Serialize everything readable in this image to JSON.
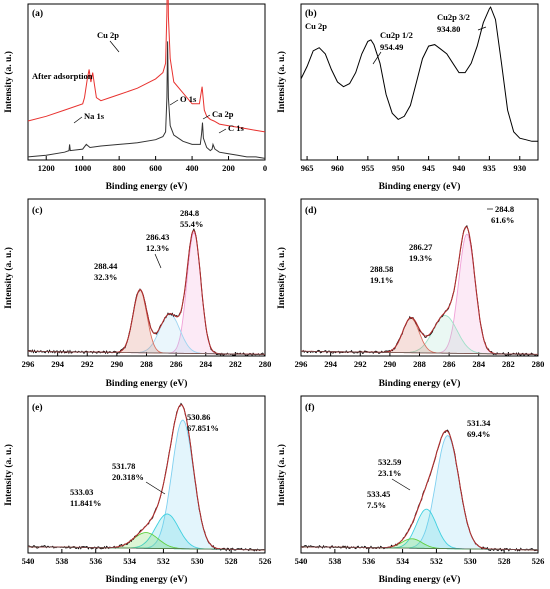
{
  "figure": {
    "xlabel": "Binding energy (eV)",
    "ylabel": "Intensity (a. u.)"
  },
  "chart_data": [
    {
      "panel": "(a)",
      "type": "line",
      "xlim": [
        1300,
        0
      ],
      "xticks": [
        1200,
        1000,
        800,
        600,
        400,
        200,
        0
      ],
      "xlabel": "Binding energy (eV)",
      "ylabel": "Intensity (a. u.)",
      "series": [
        {
          "name": "After adsorption",
          "color": "#e8322f",
          "x": [
            1300,
            1200,
            1100,
            1000,
            990,
            975,
            965,
            955,
            945,
            935,
            925,
            900,
            850,
            800,
            750,
            700,
            650,
            600,
            560,
            545,
            538,
            534,
            530,
            520,
            500,
            450,
            400,
            360,
            345,
            338,
            333,
            320,
            300,
            280,
            250,
            200,
            150,
            100,
            50,
            0
          ],
          "y": [
            0.25,
            0.28,
            0.32,
            0.36,
            0.4,
            0.52,
            0.58,
            0.5,
            0.56,
            0.48,
            0.4,
            0.38,
            0.4,
            0.42,
            0.44,
            0.46,
            0.49,
            0.52,
            0.56,
            0.62,
            0.95,
            1.4,
            0.92,
            0.65,
            0.5,
            0.43,
            0.36,
            0.36,
            0.47,
            0.38,
            0.32,
            0.28,
            0.26,
            0.25,
            0.23,
            0.22,
            0.21,
            0.2,
            0.19,
            0.18
          ]
        },
        {
          "name": "",
          "color": "#333333",
          "x": [
            1300,
            1200,
            1100,
            1075,
            1072,
            1068,
            1000,
            980,
            970,
            960,
            900,
            800,
            700,
            600,
            560,
            545,
            538,
            534,
            530,
            520,
            500,
            450,
            400,
            355,
            348,
            343,
            338,
            320,
            300,
            290,
            285,
            275,
            250,
            200,
            150,
            100,
            50,
            0
          ],
          "y": [
            0.02,
            0.03,
            0.05,
            0.06,
            0.1,
            0.06,
            0.07,
            0.1,
            0.09,
            0.08,
            0.09,
            0.1,
            0.11,
            0.13,
            0.15,
            0.18,
            0.4,
            0.76,
            0.4,
            0.22,
            0.16,
            0.12,
            0.1,
            0.1,
            0.17,
            0.24,
            0.14,
            0.08,
            0.06,
            0.07,
            0.1,
            0.07,
            0.05,
            0.04,
            0.03,
            0.02,
            0.02,
            0.01
          ]
        }
      ],
      "annotations": [
        "Cu 2p",
        "Na 1s",
        "O 1s",
        "Ca 2p",
        "C 1s"
      ]
    },
    {
      "panel": "(b)",
      "title": "Cu 2p",
      "type": "line",
      "xlim": [
        966,
        927
      ],
      "xticks": [
        965,
        960,
        955,
        950,
        945,
        940,
        935,
        930
      ],
      "xlabel": "Binding energy (eV)",
      "ylabel": "Intensity (a. u.)",
      "series": [
        {
          "name": "",
          "color": "#000000",
          "x": [
            966,
            965,
            964,
            963,
            962,
            961,
            960,
            959,
            958,
            957,
            956,
            955,
            954.5,
            954,
            953,
            952,
            951,
            950,
            949,
            948,
            947,
            946,
            945,
            944,
            943,
            942,
            941,
            940,
            939,
            938,
            937,
            936,
            935,
            934.8,
            934,
            933,
            932,
            931,
            930,
            929,
            928,
            927
          ],
          "y": [
            0.52,
            0.6,
            0.7,
            0.72,
            0.68,
            0.58,
            0.5,
            0.47,
            0.49,
            0.56,
            0.68,
            0.76,
            0.77,
            0.74,
            0.62,
            0.42,
            0.3,
            0.26,
            0.28,
            0.35,
            0.5,
            0.65,
            0.73,
            0.74,
            0.71,
            0.68,
            0.62,
            0.56,
            0.56,
            0.62,
            0.73,
            0.88,
            0.97,
            0.98,
            0.9,
            0.62,
            0.32,
            0.18,
            0.14,
            0.13,
            0.12,
            0.12
          ]
        }
      ],
      "annotations": [
        "Cu2p 1/2",
        "954.49",
        "Cu2p 3/2",
        "934.80"
      ]
    },
    {
      "panel": "(c)",
      "type": "line",
      "xlim": [
        296,
        280
      ],
      "xticks": [
        296,
        294,
        292,
        290,
        288,
        286,
        284,
        282,
        280
      ],
      "xlabel": "Binding energy (eV)",
      "ylabel": "Intensity (a. u.)",
      "peaks": [
        {
          "center": 284.8,
          "percent": "55.4%",
          "color": "#f0a0d8",
          "amp": 0.77,
          "fwhm": 1.1
        },
        {
          "center": 286.43,
          "percent": "12.3%",
          "color": "#9fd4f0",
          "amp": 0.25,
          "fwhm": 1.6
        },
        {
          "center": 288.44,
          "percent": "32.3%",
          "color": "#d87060",
          "amp": 0.4,
          "fwhm": 1.1
        }
      ],
      "baseline": [
        0.03,
        0.01
      ],
      "annotations": [
        "284.8",
        "55.4%",
        "286.43",
        "12.3%",
        "288.44",
        "32.3%"
      ]
    },
    {
      "panel": "(d)",
      "type": "line",
      "xlim": [
        296,
        280
      ],
      "xticks": [
        296,
        294,
        292,
        290,
        288,
        286,
        284,
        282,
        280
      ],
      "xlabel": "Binding energy (eV)",
      "ylabel": "Intensity (a. u.)",
      "peaks": [
        {
          "center": 284.8,
          "percent": "61.6%",
          "color": "#f0a0d8",
          "amp": 0.76,
          "fwhm": 1.3
        },
        {
          "center": 286.27,
          "percent": "19.3%",
          "color": "#9fe0c8",
          "amp": 0.24,
          "fwhm": 1.9
        },
        {
          "center": 288.58,
          "percent": "19.1%",
          "color": "#d87060",
          "amp": 0.22,
          "fwhm": 1.3
        }
      ],
      "baseline": [
        0.03,
        0.01
      ],
      "annotations": [
        "284.8",
        "61.6%",
        "286.27",
        "19.3%",
        "288.58",
        "19.1%"
      ]
    },
    {
      "panel": "(e)",
      "type": "line",
      "xlim": [
        540,
        526
      ],
      "xticks": [
        540,
        538,
        536,
        534,
        532,
        530,
        528,
        526
      ],
      "xlabel": "Binding energy (eV)",
      "ylabel": "Intensity (a. u.)",
      "peaks": [
        {
          "center": 530.86,
          "percent": "67.851%",
          "color": "#7fd0f0",
          "amp": 0.82,
          "fwhm": 1.5
        },
        {
          "center": 531.78,
          "percent": "20.318%",
          "color": "#40d0e0",
          "amp": 0.22,
          "fwhm": 1.6
        },
        {
          "center": 533.03,
          "percent": "11.841%",
          "color": "#60d040",
          "amp": 0.1,
          "fwhm": 1.7
        }
      ],
      "baseline": [
        0.04,
        0.02
      ],
      "annotations": [
        "530.86",
        "67.851%",
        "531.78",
        "20.318%",
        "533.03",
        "11.841%"
      ]
    },
    {
      "panel": "(f)",
      "type": "line",
      "xlim": [
        540,
        526
      ],
      "xticks": [
        540,
        538,
        536,
        534,
        532,
        530,
        528,
        526
      ],
      "xlabel": "Binding energy (eV)",
      "ylabel": "Intensity (a. u.)",
      "peaks": [
        {
          "center": 531.34,
          "percent": "69.4%",
          "color": "#7fd0f0",
          "amp": 0.72,
          "fwhm": 1.6
        },
        {
          "center": 532.59,
          "percent": "23.1%",
          "color": "#40d0e0",
          "amp": 0.25,
          "fwhm": 1.4
        },
        {
          "center": 533.45,
          "percent": "7.5%",
          "color": "#60d040",
          "amp": 0.06,
          "fwhm": 1.4
        }
      ],
      "baseline": [
        0.04,
        0.02
      ],
      "annotations": [
        "531.34",
        "69.4%",
        "532.59",
        "23.1%",
        "533.45",
        "7.5%"
      ]
    }
  ]
}
